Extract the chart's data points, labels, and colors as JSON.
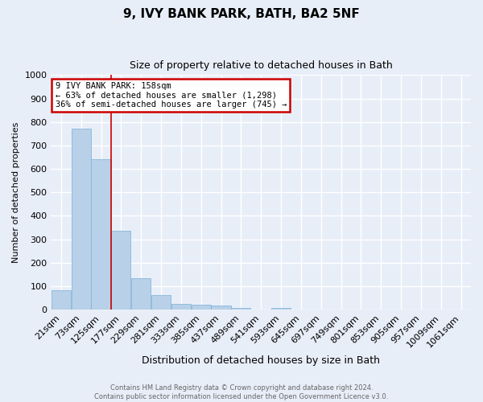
{
  "title1": "9, IVY BANK PARK, BATH, BA2 5NF",
  "title2": "Size of property relative to detached houses in Bath",
  "xlabel": "Distribution of detached houses by size in Bath",
  "ylabel": "Number of detached properties",
  "categories": [
    "21sqm",
    "73sqm",
    "125sqm",
    "177sqm",
    "229sqm",
    "281sqm",
    "333sqm",
    "385sqm",
    "437sqm",
    "489sqm",
    "541sqm",
    "593sqm",
    "645sqm",
    "697sqm",
    "749sqm",
    "801sqm",
    "853sqm",
    "905sqm",
    "957sqm",
    "1009sqm",
    "1061sqm"
  ],
  "values": [
    83,
    770,
    640,
    335,
    135,
    62,
    25,
    22,
    17,
    8,
    0,
    7,
    0,
    0,
    0,
    0,
    0,
    0,
    0,
    0,
    0
  ],
  "bar_color": "#b8d0e8",
  "bar_edge_color": "#7aafd4",
  "annotation_text": "9 IVY BANK PARK: 158sqm\n← 63% of detached houses are smaller (1,298)\n36% of semi-detached houses are larger (745) →",
  "annotation_box_color": "#ffffff",
  "annotation_box_edge": "#cc0000",
  "footer1": "Contains HM Land Registry data © Crown copyright and database right 2024.",
  "footer2": "Contains public sector information licensed under the Open Government Licence v3.0.",
  "ylim": [
    0,
    1000
  ],
  "yticks": [
    0,
    100,
    200,
    300,
    400,
    500,
    600,
    700,
    800,
    900,
    1000
  ],
  "background_color": "#e8eef8",
  "grid_color": "#ffffff",
  "red_line_index": 2.5
}
